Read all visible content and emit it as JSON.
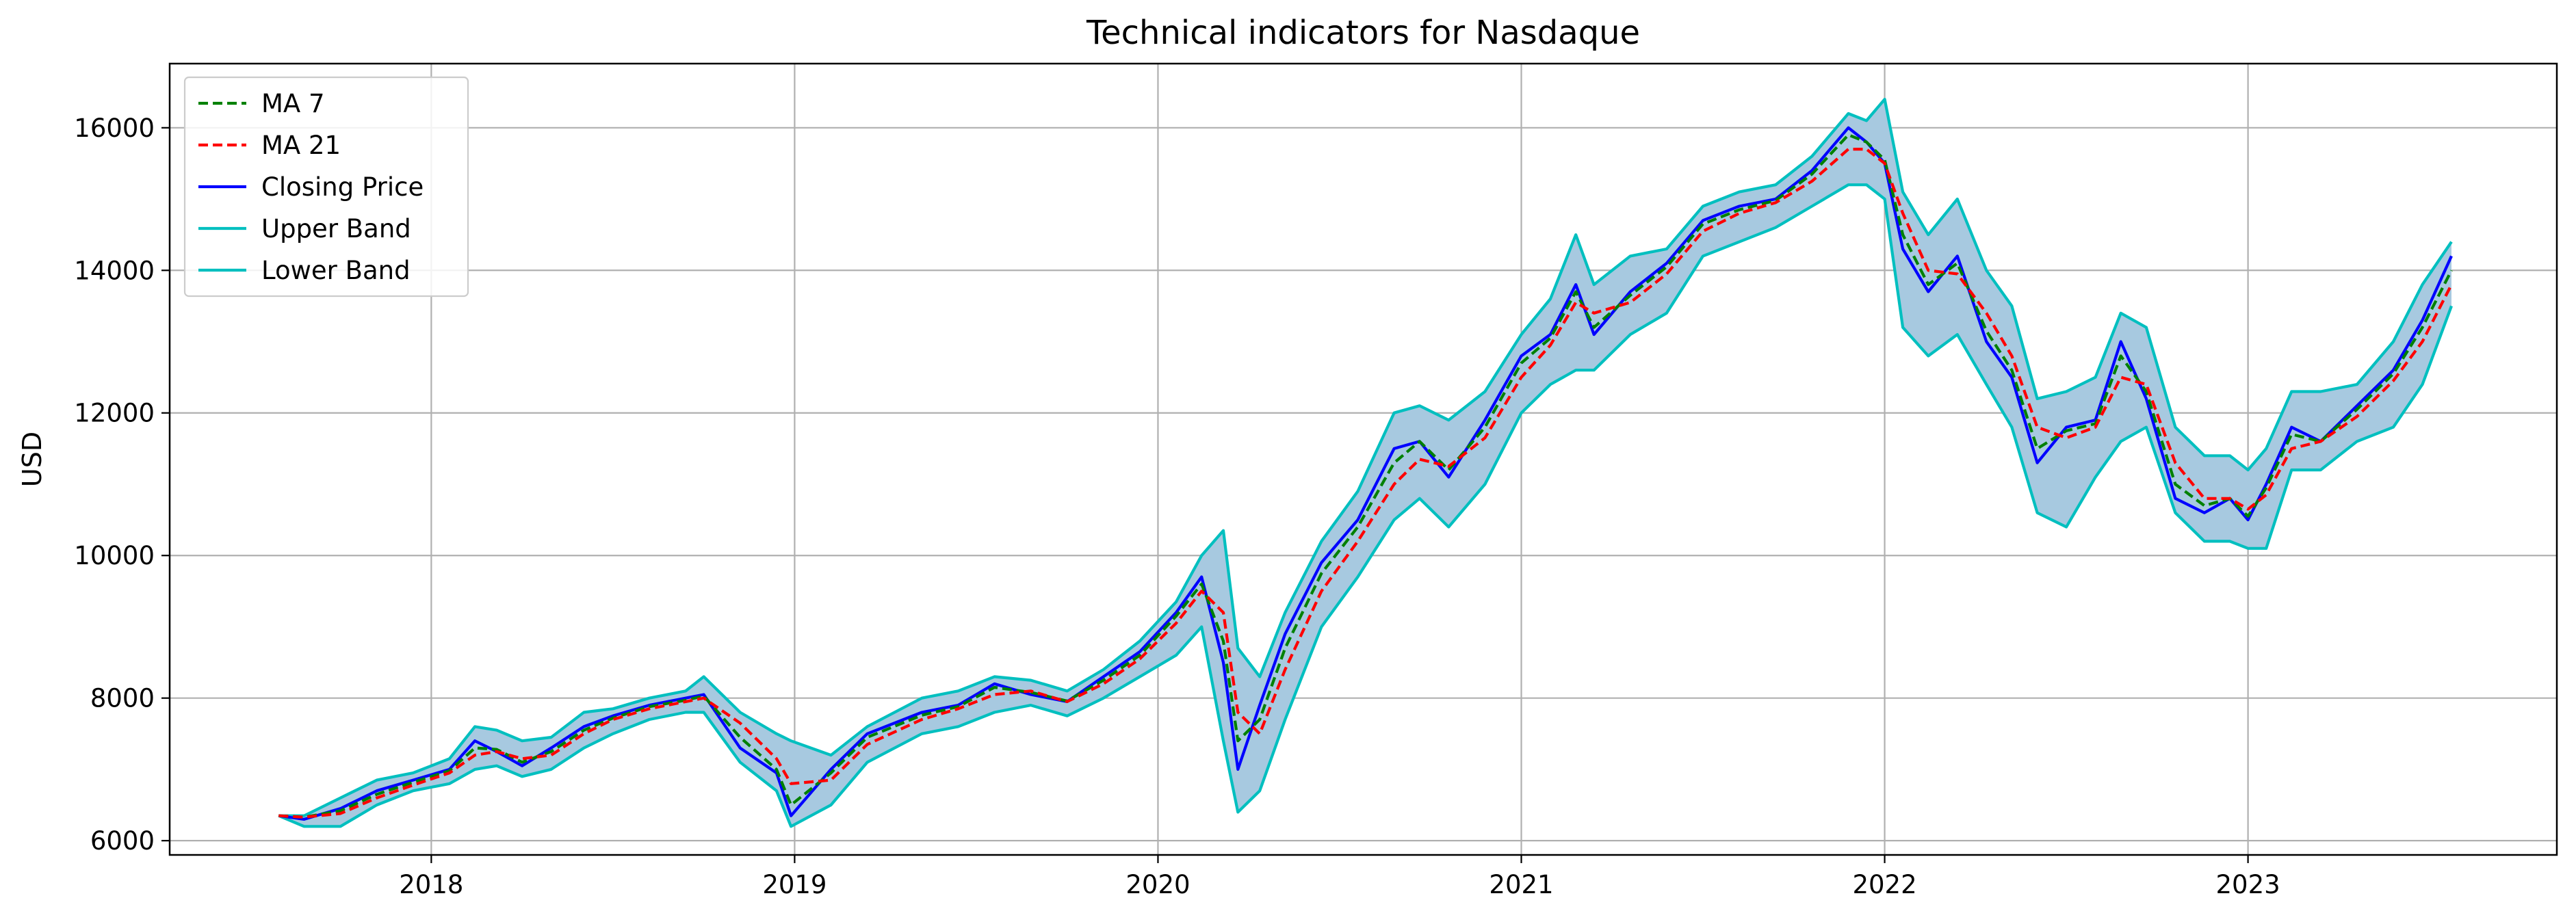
{
  "chart_data": {
    "type": "line",
    "title": "Technical indicators for Nasdaque",
    "xlabel": "",
    "ylabel": "USD",
    "xlim": [
      2017.28,
      2023.85
    ],
    "ylim": [
      5800,
      16900
    ],
    "xticks": [
      2018,
      2019,
      2020,
      2021,
      2022,
      2023
    ],
    "xtick_labels": [
      "2018",
      "2019",
      "2020",
      "2021",
      "2022",
      "2023"
    ],
    "yticks": [
      6000,
      8000,
      10000,
      12000,
      14000,
      16000
    ],
    "ytick_labels": [
      "6000",
      "8000",
      "10000",
      "12000",
      "14000",
      "16000"
    ],
    "grid": true,
    "legend_position": "upper-left",
    "band_fill_color": "#a7c9e0",
    "series": [
      {
        "name": "MA 7",
        "color": "#008000",
        "style": "dashed"
      },
      {
        "name": "MA 21",
        "color": "#ff0000",
        "style": "dashed"
      },
      {
        "name": "Closing Price",
        "color": "#0000ff",
        "style": "solid"
      },
      {
        "name": "Upper Band",
        "color": "#00bfbf",
        "style": "solid"
      },
      {
        "name": "Lower Band",
        "color": "#00bfbf",
        "style": "solid"
      }
    ],
    "x": [
      2017.58,
      2017.65,
      2017.75,
      2017.85,
      2017.95,
      2018.05,
      2018.12,
      2018.18,
      2018.25,
      2018.33,
      2018.42,
      2018.5,
      2018.6,
      2018.7,
      2018.75,
      2018.85,
      2018.95,
      2018.99,
      2019.1,
      2019.2,
      2019.35,
      2019.45,
      2019.55,
      2019.65,
      2019.75,
      2019.85,
      2019.95,
      2020.05,
      2020.12,
      2020.18,
      2020.22,
      2020.28,
      2020.35,
      2020.45,
      2020.55,
      2020.65,
      2020.72,
      2020.8,
      2020.9,
      2021.0,
      2021.08,
      2021.15,
      2021.2,
      2021.3,
      2021.4,
      2021.5,
      2021.6,
      2021.7,
      2021.8,
      2021.9,
      2021.95,
      2022.0,
      2022.05,
      2022.12,
      2022.2,
      2022.28,
      2022.35,
      2022.42,
      2022.5,
      2022.58,
      2022.65,
      2022.72,
      2022.8,
      2022.88,
      2022.95,
      2023.0,
      2023.05,
      2023.12,
      2023.2,
      2023.3,
      2023.4,
      2023.48,
      2023.56
    ],
    "close": [
      6350,
      6300,
      6450,
      6700,
      6850,
      7000,
      7400,
      7250,
      7050,
      7300,
      7600,
      7750,
      7900,
      8000,
      8050,
      7300,
      6950,
      6350,
      7000,
      7500,
      7800,
      7900,
      8200,
      8050,
      7950,
      8300,
      8650,
      9200,
      9700,
      8500,
      7000,
      7900,
      8900,
      9900,
      10500,
      11500,
      11600,
      11100,
      11900,
      12800,
      13100,
      13800,
      13100,
      13700,
      14100,
      14700,
      14900,
      15000,
      15400,
      16000,
      15800,
      15500,
      14300,
      13700,
      14200,
      13000,
      12500,
      11300,
      11800,
      11900,
      13000,
      12200,
      10800,
      10600,
      10800,
      10500,
      11000,
      11800,
      11600,
      12100,
      12600,
      13300,
      14200
    ],
    "ma7": [
      6350,
      6330,
      6420,
      6650,
      6820,
      6980,
      7300,
      7280,
      7100,
      7250,
      7550,
      7720,
      7880,
      7970,
      8030,
      7450,
      7000,
      6500,
      6950,
      7450,
      7760,
      7880,
      8150,
      8080,
      7960,
      8250,
      8600,
      9150,
      9600,
      8800,
      7400,
      7700,
      8700,
      9750,
      10400,
      11300,
      11600,
      11200,
      11800,
      12700,
      13050,
      13700,
      13200,
      13650,
      14050,
      14650,
      14850,
      14980,
      15350,
      15900,
      15800,
      15550,
      14500,
      13800,
      14100,
      13150,
      12600,
      11500,
      11750,
      11850,
      12800,
      12300,
      11000,
      10700,
      10800,
      10550,
      10950,
      11700,
      11600,
      12050,
      12550,
      13200,
      14000
    ],
    "ma21": [
      6350,
      6330,
      6380,
      6600,
      6780,
      6950,
      7200,
      7250,
      7150,
      7200,
      7500,
      7700,
      7850,
      7950,
      8000,
      7650,
      7150,
      6800,
      6850,
      7350,
      7700,
      7850,
      8050,
      8100,
      7950,
      8200,
      8550,
      9050,
      9500,
      9200,
      7800,
      7500,
      8400,
      9500,
      10200,
      11000,
      11350,
      11250,
      11650,
      12500,
      12950,
      13550,
      13400,
      13550,
      13950,
      14550,
      14800,
      14950,
      15250,
      15700,
      15700,
      15500,
      14800,
      14000,
      13950,
      13400,
      12800,
      11800,
      11650,
      11800,
      12500,
      12400,
      11300,
      10800,
      10800,
      10650,
      10850,
      11500,
      11600,
      11950,
      12450,
      13000,
      13800
    ],
    "upper": [
      6350,
      6350,
      6600,
      6850,
      6950,
      7150,
      7600,
      7550,
      7400,
      7450,
      7800,
      7850,
      8000,
      8100,
      8300,
      7800,
      7500,
      7400,
      7200,
      7600,
      8000,
      8100,
      8300,
      8250,
      8100,
      8400,
      8800,
      9350,
      10000,
      10350,
      8700,
      8300,
      9200,
      10200,
      10900,
      12000,
      12100,
      11900,
      12300,
      13100,
      13600,
      14500,
      13800,
      14200,
      14300,
      14900,
      15100,
      15200,
      15600,
      16200,
      16100,
      16400,
      15100,
      14500,
      15000,
      14000,
      13500,
      12200,
      12300,
      12500,
      13400,
      13200,
      11800,
      11400,
      11400,
      11200,
      11500,
      12300,
      12300,
      12400,
      13000,
      13800,
      14400
    ],
    "lower": [
      6350,
      6200,
      6200,
      6500,
      6700,
      6800,
      7000,
      7050,
      6900,
      7000,
      7300,
      7500,
      7700,
      7800,
      7800,
      7100,
      6700,
      6200,
      6500,
      7100,
      7500,
      7600,
      7800,
      7900,
      7750,
      8000,
      8300,
      8600,
      9000,
      7400,
      6400,
      6700,
      7700,
      9000,
      9700,
      10500,
      10800,
      10400,
      11000,
      12000,
      12400,
      12600,
      12600,
      13100,
      13400,
      14200,
      14400,
      14600,
      14900,
      15200,
      15200,
      15000,
      13200,
      12800,
      13100,
      12400,
      11800,
      10600,
      10400,
      11100,
      11600,
      11800,
      10600,
      10200,
      10200,
      10100,
      10100,
      11200,
      11200,
      11600,
      11800,
      12400,
      13500
    ]
  }
}
